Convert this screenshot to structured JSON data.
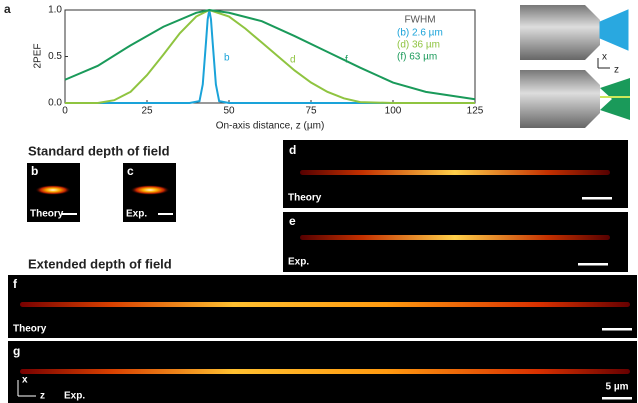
{
  "chart_data": {
    "type": "line",
    "panel_letter": "a",
    "xlabel": "On-axis distance, z (µm)",
    "ylabel": "2PEF",
    "xlim": [
      0,
      125
    ],
    "xticks": [
      0,
      25,
      50,
      75,
      100,
      125
    ],
    "ylim": [
      0,
      1
    ],
    "yticks": [
      {
        "value": 0,
        "label": "0.0"
      },
      0.5,
      {
        "value": 1,
        "label": "1.0"
      }
    ],
    "legend_title": "FWHM",
    "series": [
      {
        "name": "(b) 2.6 µm",
        "label": "b",
        "color": "#1aa3d9",
        "x": [
          0,
          38,
          41,
          42,
          43,
          43.5,
          44,
          44.5,
          45,
          46,
          47,
          50,
          125
        ],
        "values": [
          0,
          0,
          0.02,
          0.2,
          0.66,
          0.9,
          1,
          0.9,
          0.66,
          0.2,
          0.02,
          0,
          0
        ]
      },
      {
        "name": "(d) 36 µm",
        "label": "d",
        "color": "#8fc440",
        "x": [
          0,
          10,
          15,
          20,
          25,
          30,
          35,
          40,
          44,
          50,
          55,
          60,
          65,
          70,
          75,
          80,
          85,
          90,
          100,
          125
        ],
        "values": [
          0,
          0,
          0.03,
          0.12,
          0.3,
          0.52,
          0.75,
          0.93,
          1,
          0.93,
          0.8,
          0.65,
          0.5,
          0.35,
          0.22,
          0.12,
          0.05,
          0.01,
          0,
          0
        ]
      },
      {
        "name": "(f) 63 µm",
        "label": "f",
        "color": "#1a9a5a",
        "x": [
          0,
          10,
          20,
          30,
          40,
          44,
          50,
          60,
          70,
          80,
          90,
          100,
          110,
          125
        ],
        "values": [
          0.25,
          0.4,
          0.62,
          0.82,
          0.97,
          1,
          0.97,
          0.88,
          0.72,
          0.55,
          0.38,
          0.22,
          0.12,
          0.04
        ]
      }
    ]
  },
  "schematic": {
    "axis_x": "x",
    "axis_z": "z"
  },
  "standard": {
    "title": "Standard depth of field",
    "b": {
      "letter": "b",
      "caption": "Theory"
    },
    "c": {
      "letter": "c",
      "caption": "Exp."
    },
    "d": {
      "letter": "d",
      "caption": "Theory"
    },
    "e": {
      "letter": "e",
      "caption": "Exp."
    }
  },
  "extended": {
    "title": "Extended depth of field",
    "f": {
      "letter": "f",
      "caption": "Theory"
    },
    "g": {
      "letter": "g",
      "caption": "Exp.",
      "axis_x": "x",
      "axis_z": "z",
      "scale": "5 µm"
    }
  }
}
